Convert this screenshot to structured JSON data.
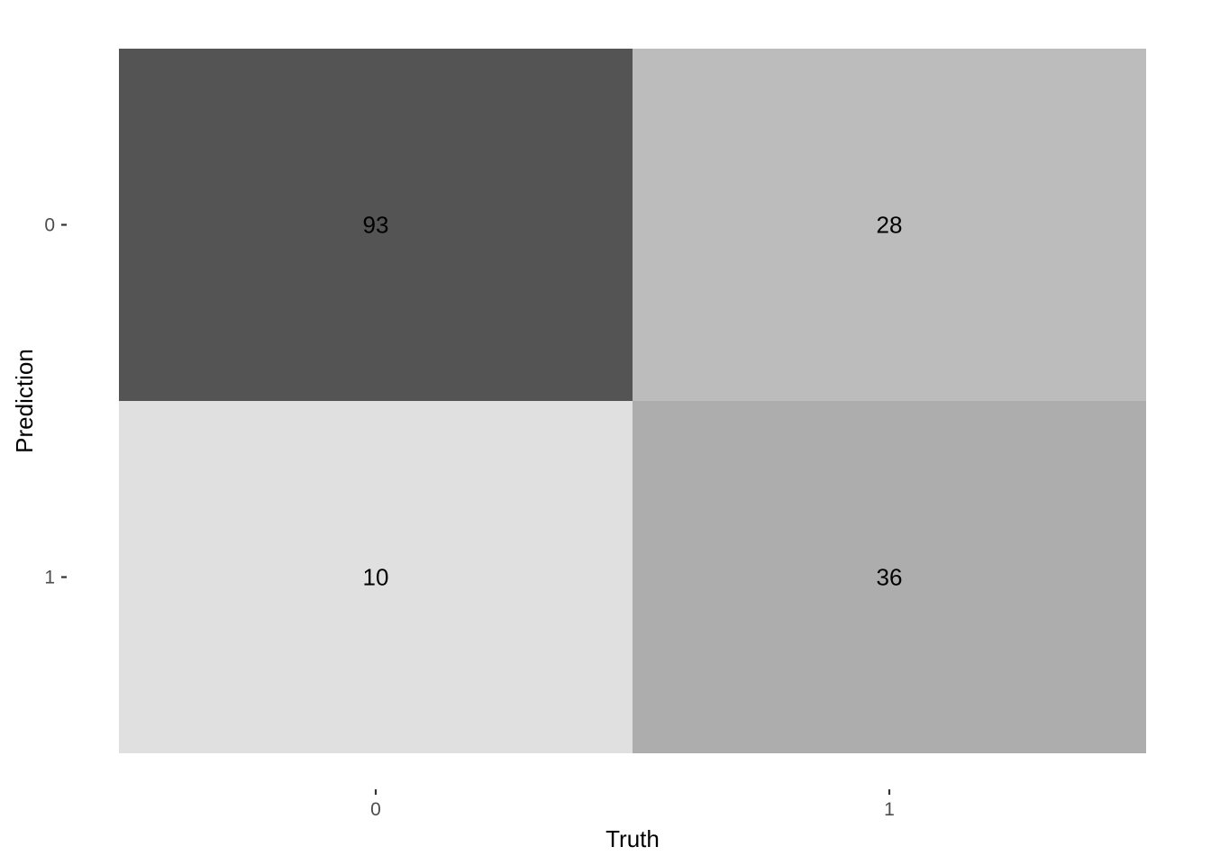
{
  "chart_data": {
    "type": "heatmap",
    "xlabel": "Truth",
    "ylabel": "Prediction",
    "x_categories": [
      "0",
      "1"
    ],
    "y_categories": [
      "0",
      "1"
    ],
    "cells": [
      {
        "prediction": "0",
        "truth": "0",
        "value": 93,
        "color": "#545454"
      },
      {
        "prediction": "0",
        "truth": "1",
        "value": 28,
        "color": "#bcbcbc"
      },
      {
        "prediction": "1",
        "truth": "0",
        "value": 10,
        "color": "#e0e0e0"
      },
      {
        "prediction": "1",
        "truth": "1",
        "value": 36,
        "color": "#adadad"
      }
    ],
    "grid": false,
    "legend": "none"
  }
}
